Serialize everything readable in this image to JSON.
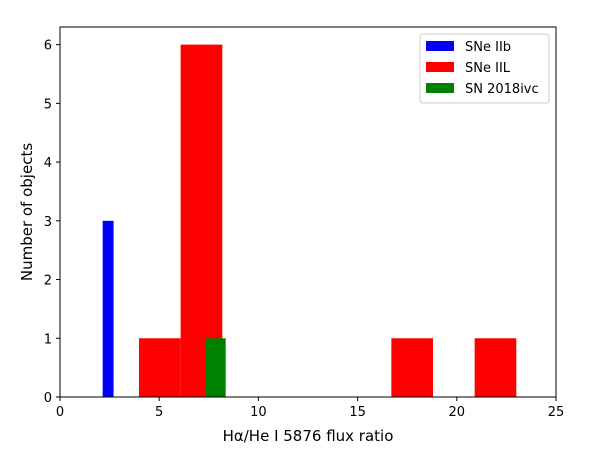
{
  "chart_data": {
    "type": "bar",
    "xlabel": "Hα/He I 5876 flux ratio",
    "ylabel": "Number of objects",
    "xlim": [
      0,
      25
    ],
    "ylim": [
      0,
      6.3
    ],
    "xticks": [
      0,
      5,
      10,
      15,
      20,
      25
    ],
    "yticks": [
      0,
      1,
      2,
      3,
      4,
      5,
      6
    ],
    "grid": false,
    "legend": "top-right",
    "series": [
      {
        "name": "SNe IIb",
        "color": "#0000ff",
        "bins": [
          {
            "x0": 2.15,
            "x1": 2.7,
            "count": 3
          }
        ]
      },
      {
        "name": "SNe IIL",
        "color": "#ff0000",
        "bins": [
          {
            "x0": 3.98,
            "x1": 6.08,
            "count": 1
          },
          {
            "x0": 6.08,
            "x1": 8.18,
            "count": 6
          },
          {
            "x0": 16.7,
            "x1": 18.8,
            "count": 1
          },
          {
            "x0": 20.9,
            "x1": 23.0,
            "count": 1
          }
        ]
      },
      {
        "name": "SN 2018ivc",
        "color": "#008000",
        "bins": [
          {
            "x0": 7.35,
            "x1": 8.35,
            "count": 1
          }
        ]
      }
    ]
  }
}
